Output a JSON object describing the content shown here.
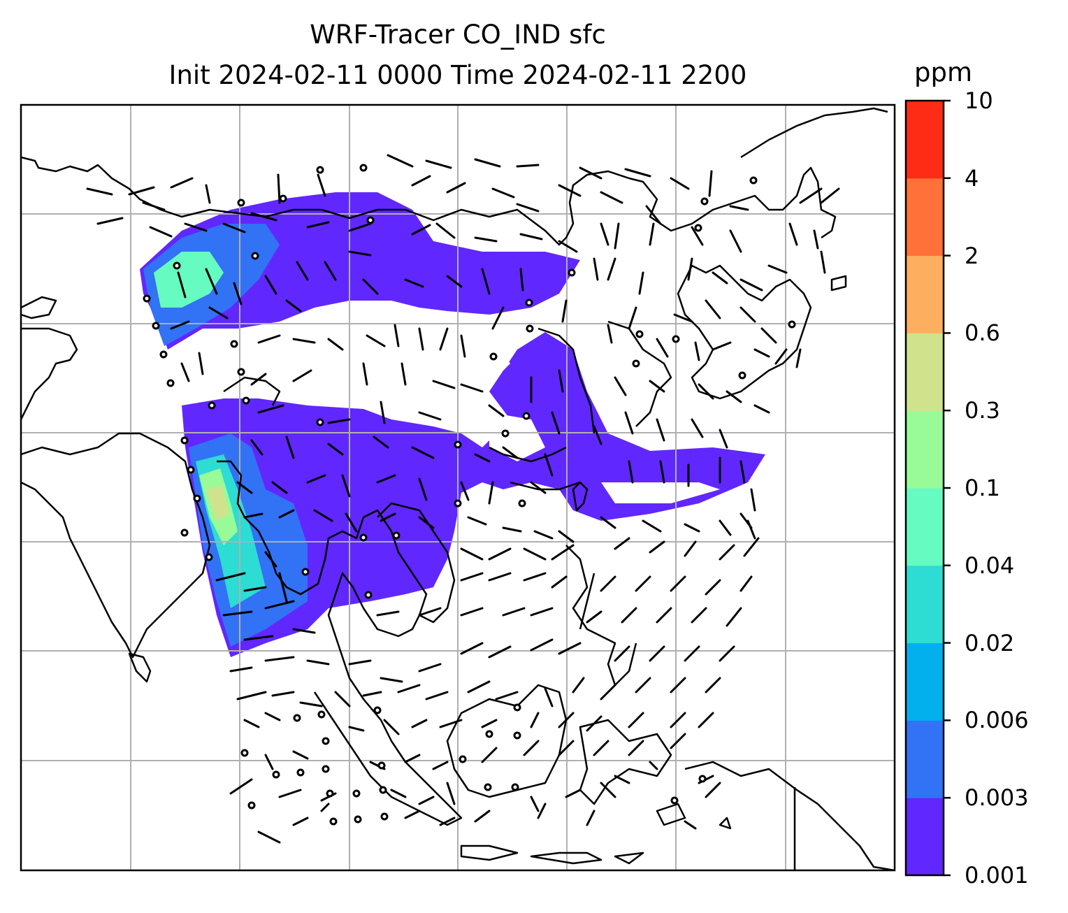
{
  "title": {
    "line1": "WRF-Tracer CO_IND sfc",
    "line2": "Init 2024-02-11 0000 Time 2024-02-11 2200"
  },
  "colorbar": {
    "unit": "ppm",
    "levels": [
      "0.001",
      "0.003",
      "0.006",
      "0.02",
      "0.04",
      "0.1",
      "0.3",
      "0.6",
      "2",
      "4",
      "10"
    ],
    "colors": [
      "#6127ff",
      "#3272f5",
      "#01b0ec",
      "#2ddcd3",
      "#66fbc0",
      "#98fb98",
      "#d0e38c",
      "#feae5f",
      "#ff7138",
      "#ff2c15"
    ]
  },
  "map": {
    "frame_color": "#000000",
    "gridline_color": "#b0b0b0",
    "coastline_color": "#000000",
    "symbols": [
      "wind-barbs",
      "calm-wind-circles",
      "coastlines",
      "gridlines"
    ]
  }
}
